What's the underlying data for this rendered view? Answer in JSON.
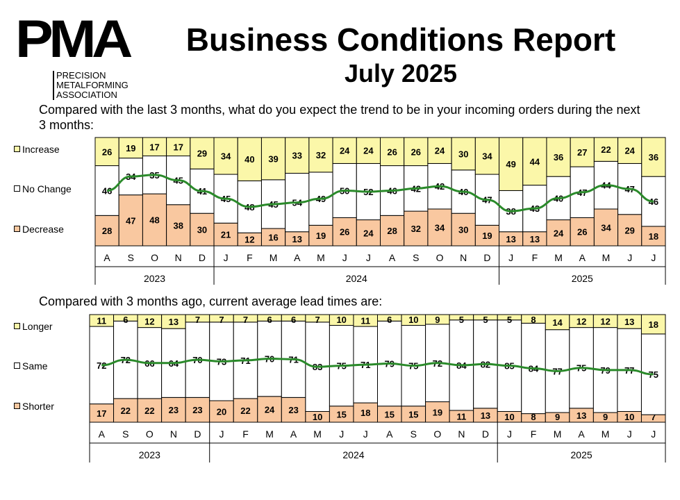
{
  "logo": {
    "mark": "PMA",
    "line1": "PRECISION",
    "line2": "METALFORMING",
    "line3": "ASSOCIATION"
  },
  "header": {
    "title": "Business Conditions Report",
    "subtitle": "July 2025"
  },
  "colors": {
    "increase": "#fbf7a9",
    "same": "#ffffff",
    "decrease": "#f9c8a0",
    "trend": "#2a8a2a",
    "border": "#000000"
  },
  "chart_data": [
    {
      "type": "bar",
      "stacked": true,
      "title": "Compared with the last 3 months, what do you expect the trend to be in your incoming orders during the next 3 months:",
      "categories": [
        "A",
        "S",
        "O",
        "N",
        "D",
        "J",
        "F",
        "M",
        "A",
        "M",
        "J",
        "J",
        "A",
        "S",
        "O",
        "N",
        "D",
        "J",
        "F",
        "M",
        "A",
        "M",
        "J",
        "J"
      ],
      "years": [
        {
          "label": "2023",
          "count": 5
        },
        {
          "label": "2024",
          "count": 12
        },
        {
          "label": "2025",
          "count": 7
        }
      ],
      "series": [
        {
          "name": "Decrease",
          "values": [
            28,
            47,
            48,
            38,
            30,
            21,
            12,
            16,
            13,
            19,
            26,
            24,
            28,
            32,
            34,
            30,
            19,
            13,
            13,
            24,
            26,
            34,
            29,
            18
          ]
        },
        {
          "name": "No Change",
          "values": [
            46,
            34,
            35,
            45,
            41,
            45,
            48,
            45,
            54,
            49,
            50,
            52,
            46,
            42,
            42,
            40,
            47,
            38,
            43,
            40,
            47,
            44,
            47,
            46
          ]
        },
        {
          "name": "Increase",
          "values": [
            26,
            19,
            17,
            17,
            29,
            34,
            40,
            39,
            33,
            32,
            24,
            24,
            26,
            26,
            24,
            30,
            34,
            49,
            44,
            36,
            27,
            22,
            24,
            36
          ]
        }
      ],
      "legend": [
        "Increase",
        "No Change",
        "Decrease"
      ],
      "ylim": [
        0,
        100
      ]
    },
    {
      "type": "bar",
      "stacked": true,
      "title": "Compared with 3 months ago, current average lead times are:",
      "categories": [
        "A",
        "S",
        "O",
        "N",
        "D",
        "J",
        "F",
        "M",
        "A",
        "M",
        "J",
        "J",
        "A",
        "S",
        "O",
        "N",
        "D",
        "J",
        "F",
        "M",
        "A",
        "M",
        "J",
        "J"
      ],
      "years": [
        {
          "label": "2023",
          "count": 5
        },
        {
          "label": "2024",
          "count": 12
        },
        {
          "label": "2025",
          "count": 7
        }
      ],
      "series": [
        {
          "name": "Shorter",
          "values": [
            17,
            22,
            22,
            23,
            23,
            20,
            22,
            24,
            23,
            10,
            15,
            18,
            15,
            15,
            19,
            11,
            13,
            10,
            8,
            9,
            13,
            9,
            10,
            7
          ]
        },
        {
          "name": "Same",
          "values": [
            72,
            72,
            66,
            64,
            70,
            73,
            71,
            70,
            71,
            83,
            75,
            71,
            79,
            75,
            72,
            84,
            82,
            85,
            84,
            77,
            75,
            79,
            77,
            75
          ]
        },
        {
          "name": "Longer",
          "values": [
            11,
            6,
            12,
            13,
            7,
            7,
            7,
            6,
            6,
            7,
            10,
            11,
            6,
            10,
            9,
            5,
            5,
            5,
            8,
            14,
            12,
            12,
            13,
            18
          ]
        }
      ],
      "legend": [
        "Longer",
        "Same",
        "Shorter"
      ],
      "ylim": [
        0,
        100
      ]
    }
  ]
}
